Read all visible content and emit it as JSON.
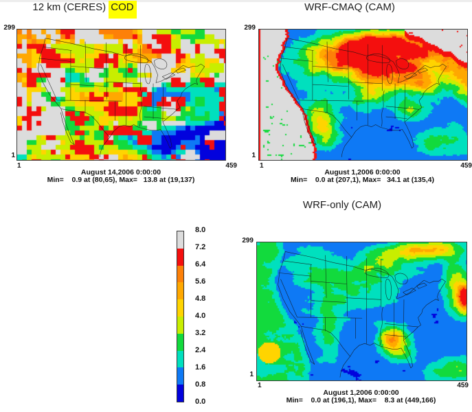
{
  "panels": {
    "ceres": {
      "title_prefix": "12 km (CERES)",
      "title_highlight": "COD",
      "y_max": "299",
      "y_min": "1",
      "x_min": "1",
      "x_max": "459",
      "caption_line1": "August 14,2006 0:00:00",
      "caption_line2": "Min=    0.9 at (80,65), Max=   13.8 at (19,137)"
    },
    "wrf_cmaq": {
      "title": "WRF-CMAQ (CAM)",
      "y_max": "299",
      "y_min": "1",
      "x_min": "1",
      "x_max": "459",
      "caption_line1": "August 1,2006 0:00:00",
      "caption_line2": "Min=    0.0 at (207,1), Max=   34.1 at (135,4)"
    },
    "wrf_only": {
      "title": "WRF-only (CAM)",
      "y_max": "299",
      "y_min": "1",
      "x_min": "1",
      "x_max": "459",
      "caption_line1": "August 1,2006 0:00:00",
      "caption_line2": "Min=    0.0 at (196,1), Max=    8.3 at (449,166)"
    }
  },
  "colorbar": {
    "ticks": [
      "8.0",
      "7.2",
      "6.4",
      "5.6",
      "4.8",
      "4.0",
      "3.2",
      "2.4",
      "1.6",
      "0.8",
      "0.0"
    ],
    "segments_top_to_bottom": [
      "#dcdcdc",
      "#f40f0e",
      "#fd8008",
      "#ffa800",
      "#ffd400",
      "#c8ee00",
      "#12da3d",
      "#00e0be",
      "#0e79f5",
      "#0202dd"
    ],
    "highlight_color": "#ffff00"
  },
  "chart_data": [
    {
      "type": "heatmap",
      "title": "12 km (CERES) COD",
      "timestamp": "August 14,2006 0:00:00",
      "x_range": [
        1,
        459
      ],
      "y_range": [
        1,
        299
      ],
      "min": {
        "value": 0.9,
        "at_cell": "(80,65)"
      },
      "max": {
        "value": 13.8,
        "at_cell": "(19,137)"
      },
      "colorbar_range": [
        0.0,
        8.0
      ],
      "colorbar_step": 0.8,
      "notes": "coarse satellite-grid cloud optical depth over continental US; gray cells = >= 7.2 or missing"
    },
    {
      "type": "heatmap",
      "title": "WRF-CMAQ (CAM)",
      "timestamp": "August 1,2006 0:00:00",
      "x_range": [
        1,
        459
      ],
      "y_range": [
        1,
        299
      ],
      "min": {
        "value": 0.0,
        "at_cell": "(207,1)"
      },
      "max": {
        "value": 34.1,
        "at_cell": "(135,4)"
      },
      "colorbar_range": [
        0.0,
        8.0
      ],
      "colorbar_step": 0.8,
      "notes": "model cloud optical depth, fine grid; mostly low (blue) west/south, high band across upper midwest to northeast, gray Pacific strip and gray NE-corner region"
    },
    {
      "type": "heatmap",
      "title": "WRF-only (CAM)",
      "timestamp": "August 1,2006 0:00:00",
      "x_range": [
        1,
        459
      ],
      "y_range": [
        1,
        299
      ],
      "min": {
        "value": 0.0,
        "at_cell": "(196,1)"
      },
      "max": {
        "value": 8.3,
        "at_cell": "(449,166)"
      },
      "colorbar_range": [
        0.0,
        8.0
      ],
      "colorbar_step": 0.8,
      "notes": "mostly low (blue) with green Pacific strip, yellow-orange patches in northeast, right edge and over Georgia/Florida"
    }
  ]
}
